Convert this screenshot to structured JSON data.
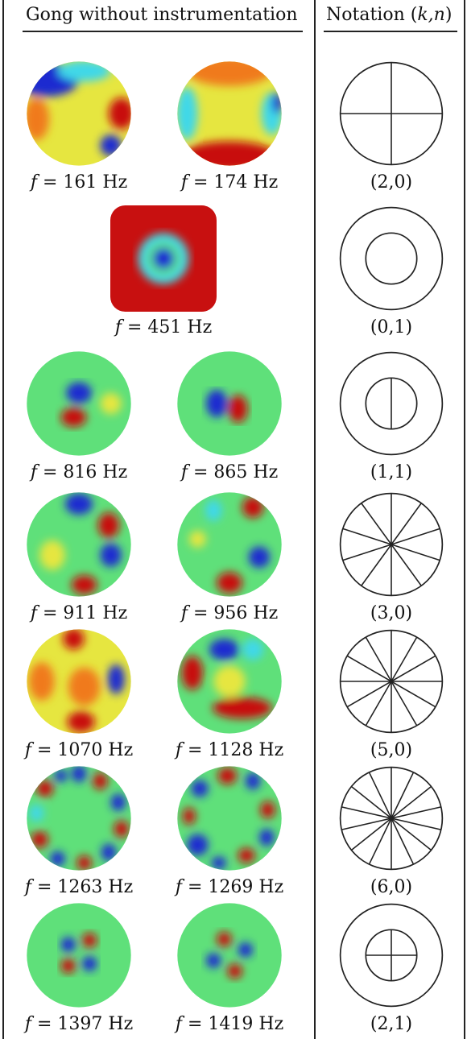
{
  "header": {
    "left": "Gong without instrumentation",
    "right_prefix": "Notation (",
    "right_vars": "k,n",
    "right_suffix": ")"
  },
  "rows": [
    {
      "notation": "(2,0)",
      "freqs": [
        "161",
        "174"
      ],
      "diagram": {
        "radial_lines": 2,
        "inner_circle": false,
        "inner_lines": 0
      }
    },
    {
      "notation": "(0,1)",
      "freqs": [
        "451"
      ],
      "diagram": {
        "radial_lines": 0,
        "inner_circle": true,
        "inner_lines": 0
      }
    },
    {
      "notation": "(1,1)",
      "freqs": [
        "816",
        "865"
      ],
      "diagram": {
        "radial_lines": 0,
        "inner_circle": true,
        "inner_lines": 1
      }
    },
    {
      "notation": "(3,0)",
      "freqs": [
        "911",
        "956"
      ],
      "diagram": {
        "radial_lines": 5,
        "inner_circle": false,
        "inner_lines": 0
      }
    },
    {
      "notation": "(5,0)",
      "freqs": [
        "1070",
        "1128"
      ],
      "diagram": {
        "radial_lines": 6,
        "inner_circle": false,
        "inner_lines": 0
      }
    },
    {
      "notation": "(6,0)",
      "freqs": [
        "1263",
        "1269"
      ],
      "diagram": {
        "radial_lines": 7,
        "inner_circle": false,
        "inner_lines": 0
      }
    },
    {
      "notation": "(2,1)",
      "freqs": [
        "1397",
        "1419"
      ],
      "diagram": {
        "radial_lines": 0,
        "inner_circle": true,
        "inner_lines": 2
      }
    }
  ],
  "label_prefix": "f",
  "label_eq": " = ",
  "label_unit": " Hz",
  "colors": {
    "red": "#c81010",
    "blue": "#1a2bd0",
    "green": "#5fe07a",
    "cyan": "#3fd8e8",
    "yellow": "#e6e640",
    "orange": "#f07a1a",
    "line": "#222222"
  }
}
